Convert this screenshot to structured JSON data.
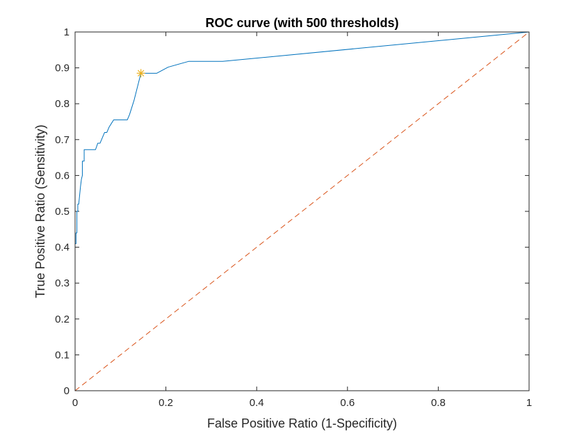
{
  "chart_data": {
    "type": "line",
    "title": "ROC curve (with 500 thresholds)",
    "xlabel": "False Positive Ratio (1-Specificity)",
    "ylabel": "True Positive Ratio (Sensitivity)",
    "xlim": [
      0,
      1
    ],
    "ylim": [
      0,
      1
    ],
    "xticks": [
      0,
      0.2,
      0.4,
      0.6,
      0.8,
      1
    ],
    "yticks": [
      0,
      0.1,
      0.2,
      0.3,
      0.4,
      0.5,
      0.6,
      0.7,
      0.8,
      0.9,
      1
    ],
    "xtick_labels": [
      "0",
      "0.2",
      "0.4",
      "0.6",
      "0.8",
      "1"
    ],
    "ytick_labels": [
      "0",
      "0.1",
      "0.2",
      "0.3",
      "0.4",
      "0.5",
      "0.6",
      "0.7",
      "0.8",
      "0.9",
      "1"
    ],
    "grid": false,
    "box": true,
    "series": [
      {
        "style": "solid",
        "color": "#0072BD",
        "x": [
          0,
          0,
          0.002,
          0.002,
          0.004,
          0.004,
          0.006,
          0.006,
          0.008,
          0.01,
          0.012,
          0.014,
          0.016,
          0.016,
          0.02,
          0.02,
          0.024,
          0.045,
          0.05,
          0.055,
          0.06,
          0.065,
          0.07,
          0.075,
          0.08,
          0.085,
          0.09,
          0.115,
          0.12,
          0.13,
          0.145,
          0.145,
          0.175,
          0.18,
          0.205,
          0.25,
          0.325,
          1.0
        ],
        "y": [
          0,
          0.41,
          0.41,
          0.44,
          0.44,
          0.5,
          0.5,
          0.52,
          0.52,
          0.545,
          0.57,
          0.59,
          0.6,
          0.64,
          0.64,
          0.672,
          0.672,
          0.672,
          0.69,
          0.69,
          0.705,
          0.72,
          0.72,
          0.735,
          0.745,
          0.755,
          0.755,
          0.755,
          0.77,
          0.81,
          0.885,
          0.885,
          0.885,
          0.885,
          0.902,
          0.918,
          0.918,
          1.0
        ]
      },
      {
        "style": "dashed",
        "color": "#D95319",
        "x": [
          0,
          1
        ],
        "y": [
          0,
          1
        ]
      }
    ],
    "markers": [
      {
        "x": 0.145,
        "y": 0.885,
        "symbol": "star",
        "color": "#EDB120"
      }
    ]
  }
}
